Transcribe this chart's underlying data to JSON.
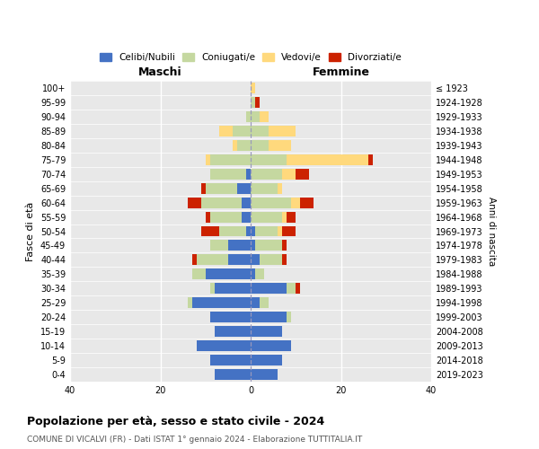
{
  "age_groups": [
    "0-4",
    "5-9",
    "10-14",
    "15-19",
    "20-24",
    "25-29",
    "30-34",
    "35-39",
    "40-44",
    "45-49",
    "50-54",
    "55-59",
    "60-64",
    "65-69",
    "70-74",
    "75-79",
    "80-84",
    "85-89",
    "90-94",
    "95-99",
    "100+"
  ],
  "birth_years": [
    "2019-2023",
    "2014-2018",
    "2009-2013",
    "2004-2008",
    "1999-2003",
    "1994-1998",
    "1989-1993",
    "1984-1988",
    "1979-1983",
    "1974-1978",
    "1969-1973",
    "1964-1968",
    "1959-1963",
    "1954-1958",
    "1949-1953",
    "1944-1948",
    "1939-1943",
    "1934-1938",
    "1929-1933",
    "1924-1928",
    "≤ 1923"
  ],
  "male": {
    "celibi": [
      8,
      9,
      12,
      8,
      9,
      13,
      8,
      10,
      5,
      5,
      1,
      2,
      2,
      3,
      1,
      0,
      0,
      0,
      0,
      0,
      0
    ],
    "coniugati": [
      0,
      0,
      0,
      0,
      0,
      1,
      1,
      3,
      7,
      4,
      6,
      7,
      9,
      7,
      8,
      9,
      3,
      4,
      1,
      0,
      0
    ],
    "vedovi": [
      0,
      0,
      0,
      0,
      0,
      0,
      0,
      0,
      0,
      0,
      0,
      0,
      0,
      0,
      0,
      1,
      1,
      3,
      0,
      0,
      0
    ],
    "divorziati": [
      0,
      0,
      0,
      0,
      0,
      0,
      0,
      0,
      1,
      0,
      4,
      1,
      3,
      1,
      0,
      0,
      0,
      0,
      0,
      0,
      0
    ]
  },
  "female": {
    "nubili": [
      6,
      7,
      9,
      7,
      8,
      2,
      8,
      1,
      2,
      1,
      1,
      0,
      0,
      0,
      0,
      0,
      0,
      0,
      0,
      0,
      0
    ],
    "coniugate": [
      0,
      0,
      0,
      0,
      1,
      2,
      2,
      2,
      5,
      6,
      5,
      7,
      9,
      6,
      7,
      8,
      4,
      4,
      2,
      1,
      0
    ],
    "vedove": [
      0,
      0,
      0,
      0,
      0,
      0,
      0,
      0,
      0,
      0,
      1,
      1,
      2,
      1,
      3,
      18,
      5,
      6,
      2,
      0,
      1
    ],
    "divorziate": [
      0,
      0,
      0,
      0,
      0,
      0,
      1,
      0,
      1,
      1,
      3,
      2,
      3,
      0,
      3,
      1,
      0,
      0,
      0,
      1,
      0
    ]
  },
  "colors": {
    "celibi": "#4472c4",
    "coniugati": "#c5d8a0",
    "vedovi": "#ffd97d",
    "divorziati": "#cc2200"
  },
  "xlim": 40,
  "title": "Popolazione per età, sesso e stato civile - 2024",
  "subtitle": "COMUNE DI VICALVI (FR) - Dati ISTAT 1° gennaio 2024 - Elaborazione TUTTITALIA.IT",
  "ylabel_left": "Fasce di età",
  "ylabel_right": "Anni di nascita",
  "xlabel_left": "Maschi",
  "xlabel_right": "Femmine",
  "legend_labels": [
    "Celibi/Nubili",
    "Coniugati/e",
    "Vedovi/e",
    "Divorziati/e"
  ],
  "bg_color": "#e8e8e8",
  "bar_height": 0.75
}
